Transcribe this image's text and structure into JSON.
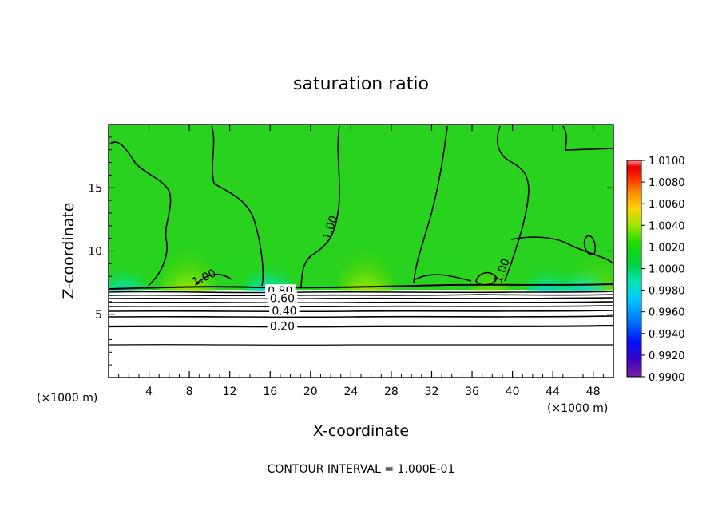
{
  "chart_data": {
    "type": "heatmap",
    "title": "saturation ratio",
    "xlabel": "X-coordinate",
    "ylabel": "Z-coordinate",
    "x_unit_left": "(×1000 m)",
    "x_unit_right": "(×1000 m)",
    "xlim": [
      0,
      50
    ],
    "ylim": [
      0,
      20
    ],
    "x_ticks": [
      4,
      8,
      12,
      16,
      20,
      24,
      28,
      32,
      36,
      40,
      44,
      48
    ],
    "y_ticks": [
      5,
      10,
      15
    ],
    "note": "CONTOUR INTERVAL = 1.000E-01",
    "colorbar": {
      "min": 0.99,
      "max": 1.01,
      "labels": [
        "1.0100",
        "1.0080",
        "1.0060",
        "1.0040",
        "1.0020",
        "1.0000",
        "0.9980",
        "0.9960",
        "0.9940",
        "0.9920",
        "0.9900"
      ],
      "colors": [
        "#7a1fa0",
        "#3f00c8",
        "#0010ff",
        "#0078ff",
        "#00c8ff",
        "#00e6b4",
        "#00d23c",
        "#1edc00",
        "#a0e600",
        "#ffd200",
        "#ff8200",
        "#ff2a00",
        "#e60000",
        "#ff8c8c"
      ]
    },
    "contour_labels": [
      {
        "text": "1.00",
        "x": 9.6,
        "z": 7.9
      },
      {
        "text": "1.00",
        "x": 22.3,
        "z": 12.0
      },
      {
        "text": "1.00",
        "x": 39.3,
        "z": 8.6
      },
      {
        "text": "0.80",
        "x": 17.0,
        "z": 6.8
      },
      {
        "text": "0.60",
        "x": 17.2,
        "z": 6.2
      },
      {
        "text": "0.40",
        "x": 17.4,
        "z": 5.2
      },
      {
        "text": "0.20",
        "x": 17.2,
        "z": 4.0
      }
    ],
    "hotspots": [
      {
        "x": 7.9,
        "kind": "high",
        "strength": 1.0
      },
      {
        "x": 25.5,
        "kind": "high",
        "strength": 1.0
      },
      {
        "x": 48.2,
        "kind": "high",
        "strength": 0.7
      },
      {
        "x": 37.8,
        "kind": "high",
        "strength": 0.3
      },
      {
        "x": 1.5,
        "kind": "low",
        "strength": 0.8
      },
      {
        "x": 15.8,
        "kind": "low",
        "strength": 1.0
      },
      {
        "x": 43.5,
        "kind": "low",
        "strength": 0.8
      },
      {
        "x": 47.0,
        "kind": "low",
        "strength": 0.9
      }
    ]
  }
}
